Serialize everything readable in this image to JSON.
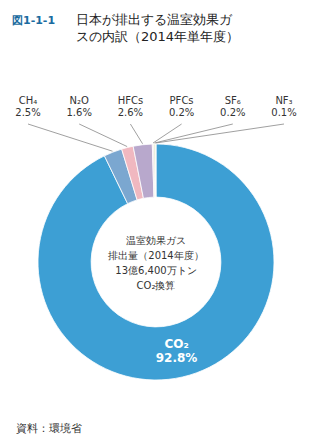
{
  "chart_data": {
    "type": "pie",
    "title": "日本が排出する温室効果ガ\nスの内訳（2014年単年度）",
    "categories": [
      "CO₂",
      "CH₄",
      "N₂O",
      "HFCs",
      "PFCs",
      "SF₆",
      "NF₃"
    ],
    "values": [
      92.8,
      2.5,
      1.6,
      2.6,
      0.2,
      0.2,
      0.1
    ],
    "value_labels": [
      "92.8%",
      "2.5%",
      "1.6%",
      "2.6%",
      "0.2%",
      "0.2%",
      "0.1%"
    ],
    "colors": [
      "#3d9fd4",
      "#7ba7d0",
      "#f0b8c0",
      "#b8a8cc",
      "#e8c8d8",
      "#d4e0b8",
      "#e8e0b0"
    ],
    "data_labels": true,
    "annotations": [
      "図1-1-1",
      "温室効果ガス\n排出量（2014年度）\n13億6,400万トン\nCO₂換算",
      "資料：環境省"
    ]
  }
}
